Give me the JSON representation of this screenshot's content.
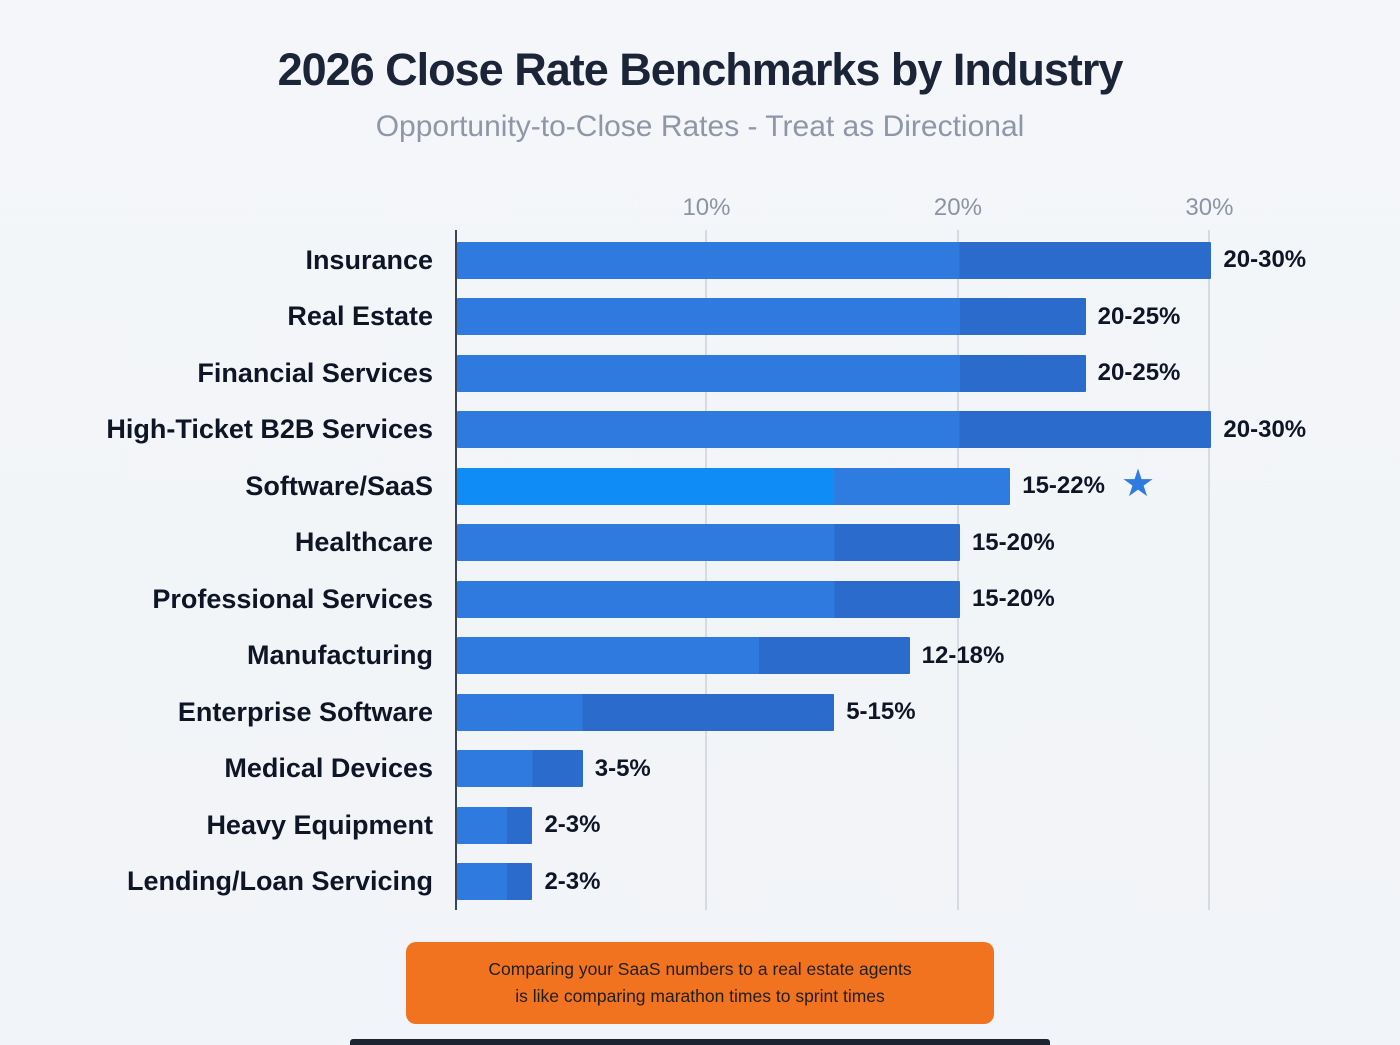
{
  "title": "2026 Close Rate Benchmarks by Industry",
  "subtitle": "Opportunity-to-Close Rates - Treat as Directional",
  "chart_data": {
    "type": "bar",
    "orientation": "horizontal",
    "title": "2026 Close Rate Benchmarks by Industry",
    "xlim": [
      0,
      34
    ],
    "grid": true,
    "x_ticks": [
      {
        "value": 10,
        "label": "10%"
      },
      {
        "value": 20,
        "label": "20%"
      },
      {
        "value": 30,
        "label": "30%"
      }
    ],
    "bars": [
      {
        "category": "Insurance",
        "min": 20,
        "max": 30,
        "label": "20-30%",
        "highlight": false
      },
      {
        "category": "Real Estate",
        "min": 20,
        "max": 25,
        "label": "20-25%",
        "highlight": false
      },
      {
        "category": "Financial Services",
        "min": 20,
        "max": 25,
        "label": "20-25%",
        "highlight": false
      },
      {
        "category": "High-Ticket B2B Services",
        "min": 20,
        "max": 30,
        "label": "20-30%",
        "highlight": false
      },
      {
        "category": "Software/SaaS",
        "min": 15,
        "max": 22,
        "label": "15-22%",
        "highlight": true,
        "marker": "star"
      },
      {
        "category": "Healthcare",
        "min": 15,
        "max": 20,
        "label": "15-20%",
        "highlight": false
      },
      {
        "category": "Professional Services",
        "min": 15,
        "max": 20,
        "label": "15-20%",
        "highlight": false
      },
      {
        "category": "Manufacturing",
        "min": 12,
        "max": 18,
        "label": "12-18%",
        "highlight": false
      },
      {
        "category": "Enterprise Software",
        "min": 5,
        "max": 15,
        "label": "5-15%",
        "highlight": false
      },
      {
        "category": "Medical Devices",
        "min": 3,
        "max": 5,
        "label": "3-5%",
        "highlight": false
      },
      {
        "category": "Heavy Equipment",
        "min": 2,
        "max": 3,
        "label": "2-3%",
        "highlight": false
      },
      {
        "category": "Lending/Loan Servicing",
        "min": 2,
        "max": 3,
        "label": "2-3%",
        "highlight": false
      }
    ]
  },
  "callout": {
    "line1": "Comparing your SaaS numbers to a real estate agents",
    "line2": "is like comparing marathon times to sprint times"
  },
  "colors": {
    "background": "#f1f4f8",
    "title": "#1c2438",
    "subtitle": "#8e97a8",
    "bar": "#2f7ade",
    "bar_range": "#2a6bcc",
    "bar_highlight": "#0f8cf5",
    "bar_highlight_range": "#2e7ce0",
    "star": "#2e7ce0",
    "grid": "#d6dbe2",
    "axis": "#3a4554",
    "value_text": "#0e1626",
    "callout_bg": "#f2731f",
    "callout_text": "#1f1f1f",
    "bottom_strip": "#1b2430"
  }
}
